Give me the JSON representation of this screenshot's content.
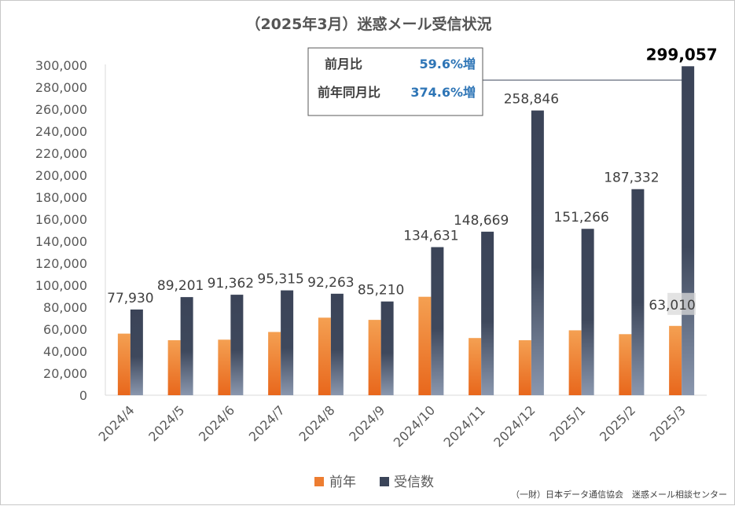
{
  "chart_data": {
    "type": "bar",
    "title": "（2025年3月）迷惑メール受信状況",
    "categories": [
      "2024/4",
      "2024/5",
      "2024/6",
      "2024/7",
      "2024/8",
      "2024/9",
      "2024/10",
      "2024/11",
      "2024/12",
      "2025/1",
      "2025/2",
      "2025/3"
    ],
    "series": [
      {
        "name": "前年",
        "color": "#ed7d31",
        "values": [
          56000,
          50000,
          50500,
          57500,
          70500,
          68500,
          89500,
          52000,
          50000,
          59000,
          55500,
          63010
        ]
      },
      {
        "name": "受信数",
        "color": "#3b4559",
        "values": [
          77930,
          89201,
          91362,
          95315,
          92263,
          85210,
          134631,
          148669,
          258846,
          151266,
          187332,
          299057
        ]
      }
    ],
    "data_labels": [
      "77,930",
      "89,201",
      "91,362",
      "95,315",
      "92,263",
      "85,210",
      "134,631",
      "148,669",
      "258,846",
      "151,266",
      "187,332",
      "299,057"
    ],
    "prev_year_label": "63,010",
    "ylim": [
      0,
      300000
    ],
    "yticks": [
      0,
      20000,
      40000,
      60000,
      80000,
      100000,
      120000,
      140000,
      160000,
      180000,
      200000,
      220000,
      240000,
      260000,
      280000,
      300000
    ],
    "ytick_labels": [
      "0",
      "20,000",
      "40,000",
      "60,000",
      "80,000",
      "100,000",
      "120,000",
      "140,000",
      "160,000",
      "180,000",
      "200,000",
      "220,000",
      "240,000",
      "260,000",
      "280,000",
      "300,000"
    ],
    "grid": false,
    "legend_position": "bottom"
  },
  "comparison_box": {
    "rows": [
      {
        "label": "前月比",
        "value": "59.6%増"
      },
      {
        "label": "前年同月比",
        "value": "374.6%増"
      }
    ]
  },
  "source": "（一財）日本データ通信協会　迷惑メール相談センター"
}
